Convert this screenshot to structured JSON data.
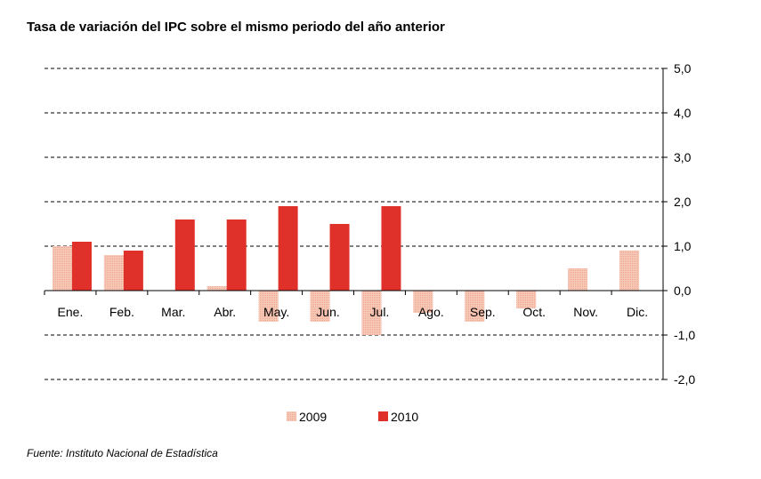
{
  "title": "Tasa de variación del IPC sobre el mismo periodo del año anterior",
  "source": "Fuente: Instituto Nacional de Estadística",
  "colors": {
    "s2009": "#f4b8a5",
    "s2010": "#e0302a",
    "grid": "#000000"
  },
  "chart_data": {
    "type": "bar",
    "title": "Tasa de variación del IPC sobre el mismo periodo del año anterior",
    "categories": [
      "Ene.",
      "Feb.",
      "Mar.",
      "Abr.",
      "May.",
      "Jun.",
      "Jul.",
      "Ago.",
      "Sep.",
      "Oct.",
      "Nov.",
      "Dic."
    ],
    "series": [
      {
        "name": "2009",
        "values": [
          1.0,
          0.8,
          0.0,
          0.1,
          -0.7,
          -0.7,
          -1.0,
          -0.5,
          -0.7,
          -0.4,
          0.5,
          0.9
        ]
      },
      {
        "name": "2010",
        "values": [
          1.1,
          0.9,
          1.6,
          1.6,
          1.9,
          1.5,
          1.9,
          null,
          null,
          null,
          null,
          null
        ]
      }
    ],
    "ylim": [
      -2.0,
      5.0
    ],
    "yticks": [
      5.0,
      4.0,
      3.0,
      2.0,
      1.0,
      0.0,
      -1.0,
      -2.0
    ],
    "ytick_labels": [
      "5,0",
      "4,0",
      "3,0",
      "2,0",
      "1,0",
      "0,0",
      "-1,0",
      "-2,0"
    ],
    "grid": true,
    "y_axis_side": "right",
    "legend": "bottom"
  }
}
